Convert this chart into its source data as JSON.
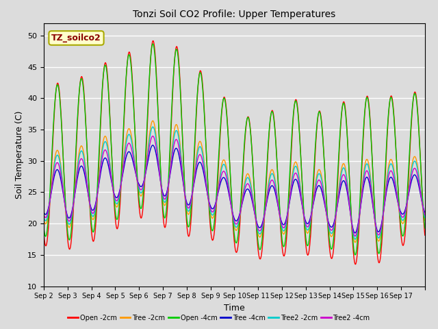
{
  "title": "Tonzi Soil CO2 Profile: Upper Temperatures",
  "xlabel": "Time",
  "ylabel": "Soil Temperature (C)",
  "ylim": [
    10,
    52
  ],
  "yticks": [
    10,
    15,
    20,
    25,
    30,
    35,
    40,
    45,
    50
  ],
  "background_color": "#dcdcdc",
  "plot_bg_color": "#dcdcdc",
  "legend_label": "TZ_soilco2",
  "legend_box_color": "#ffffcc",
  "legend_box_edge": "#aaaa00",
  "series_order": [
    "Open -2cm",
    "Tree -2cm",
    "Open -4cm",
    "Tree -4cm",
    "Tree2 -2cm",
    "Tree2 -4cm"
  ],
  "series_colors": [
    "#ff0000",
    "#ff9900",
    "#00cc00",
    "#0000cc",
    "#00cccc",
    "#cc00cc"
  ],
  "num_days": 16,
  "xtick_labels": [
    "Sep 2",
    "Sep 3",
    "Sep 4",
    "Sep 5",
    "Sep 6",
    "Sep 7",
    "Sep 8",
    "Sep 9",
    "Sep 10",
    "Sep 11",
    "Sep 12",
    "Sep 13",
    "Sep 14",
    "Sep 15",
    "Sep 16",
    "Sep 17"
  ]
}
